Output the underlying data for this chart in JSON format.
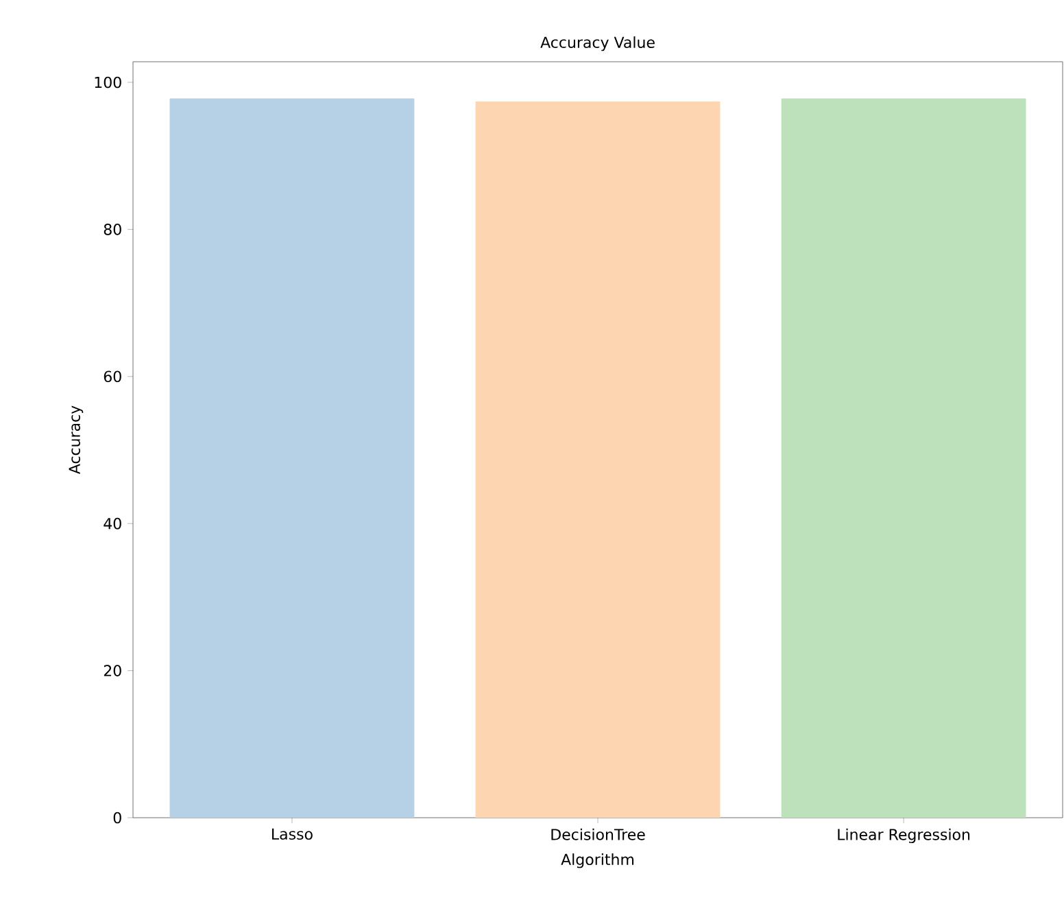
{
  "chart_data": {
    "type": "bar",
    "title": "Accuracy Value",
    "xlabel": "Algorithm",
    "ylabel": "Accuracy",
    "categories": [
      "Lasso",
      "DecisionTree",
      "Linear Regression"
    ],
    "values": [
      97.8,
      97.4,
      97.8
    ],
    "colors": [
      "#b6d0e5",
      "#fdd5b0",
      "#bde2bb"
    ],
    "ylim": [
      0,
      102.8
    ],
    "yticks": [
      0,
      20,
      40,
      60,
      80,
      100
    ],
    "grid": false
  }
}
